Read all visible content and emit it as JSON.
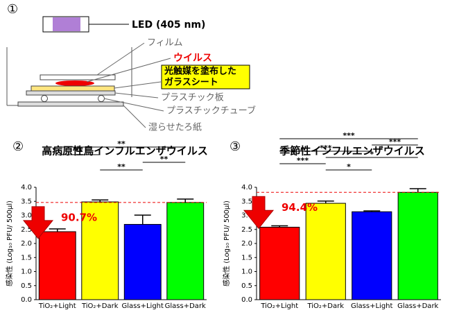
{
  "diagram": {
    "number": "①",
    "led": "LED (405 nm)",
    "film": "フィルム",
    "virus": "ウイルス",
    "glass_sheet": [
      "光触媒を塗布した",
      "ガラスシート"
    ],
    "plastic_plate": "プラスチック板",
    "plastic_tube": "プラスチックチューブ",
    "filter_paper": "湿らせたろ紙"
  },
  "chart_data": [
    {
      "type": "bar",
      "label": "②",
      "title": "高病原性鳥インフルエンザウイルス",
      "y_label": "感染性 (Log₁₀ PFU/ 500μl)",
      "categories": [
        "TiO₂+Light",
        "TiO₂+Dark",
        "Glass+Light",
        "Glass+Dark"
      ],
      "values": [
        2.42,
        3.48,
        2.68,
        3.46
      ],
      "errors": [
        0.1,
        0.07,
        0.33,
        0.12
      ],
      "colors": [
        "#ff0000",
        "#ffff00",
        "#0000ff",
        "#00ff00"
      ],
      "ylim": [
        0,
        4
      ],
      "yticks": [
        {
          "value": 0,
          "label": "0.0"
        },
        {
          "value": 0.5,
          "label": "0.5"
        },
        {
          "value": 1,
          "label": "1.0"
        },
        {
          "value": 1.5,
          "label": "1.5"
        },
        {
          "value": 2,
          "label": "2.0"
        },
        {
          "value": 2.5,
          "label": "2.5"
        },
        {
          "value": 3,
          "label": "3.0"
        },
        {
          "value": 3.5,
          "label": "3.5"
        },
        {
          "value": 4,
          "label": "4.0"
        }
      ],
      "reference_line": 3.46,
      "annotation": "90.7%",
      "significance": [
        {
          "between": [
            0,
            3
          ],
          "label": "**"
        },
        {
          "between": [
            0,
            1
          ],
          "label": "**"
        },
        {
          "between": [
            2,
            3
          ],
          "label": "**"
        },
        {
          "between": [
            1,
            2
          ],
          "label": "**"
        }
      ]
    },
    {
      "type": "bar",
      "label": "③",
      "title": "季節性インフルエンザウイルス",
      "y_label": "感染性 (Log₁₀ PFU/ 500μl)",
      "categories": [
        "TiO₂+Light",
        "TiO₂+Dark",
        "Glass+Light",
        "Glass+Dark"
      ],
      "values": [
        2.58,
        3.43,
        3.13,
        3.82
      ],
      "errors": [
        0.05,
        0.08,
        0.03,
        0.13
      ],
      "colors": [
        "#ff0000",
        "#ffff00",
        "#0000ff",
        "#00ff00"
      ],
      "ylim": [
        0,
        4
      ],
      "yticks": [
        {
          "value": 0,
          "label": "0.0"
        },
        {
          "value": 0.5,
          "label": "0.5"
        },
        {
          "value": 1,
          "label": "1.0"
        },
        {
          "value": 1.5,
          "label": "1.5"
        },
        {
          "value": 2,
          "label": "2.0"
        },
        {
          "value": 2.5,
          "label": "2.5"
        },
        {
          "value": 3,
          "label": "3.0"
        },
        {
          "value": 3.5,
          "label": "3.5"
        },
        {
          "value": 4,
          "label": "4.0"
        }
      ],
      "reference_line": 3.82,
      "annotation": "94.4%",
      "significance": [
        {
          "between": [
            0,
            3
          ],
          "label": "***"
        },
        {
          "between": [
            2,
            3
          ],
          "label": "***"
        },
        {
          "between": [
            0,
            2
          ],
          "label": "***"
        },
        {
          "between": [
            1,
            3
          ],
          "label": "*"
        },
        {
          "between": [
            0,
            1
          ],
          "label": "***"
        },
        {
          "between": [
            1,
            2
          ],
          "label": "*"
        }
      ]
    }
  ]
}
